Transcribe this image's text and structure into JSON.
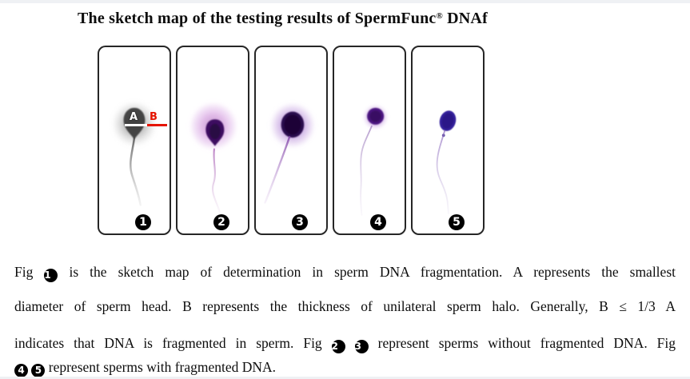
{
  "title": {
    "text": "The sketch map of the testing results of SpermFunc",
    "registered_mark": "®",
    "suffix": " DNAf"
  },
  "figure": {
    "name": "sperm-dna-fragmentation-sketch-panels",
    "panels": [
      {
        "number": "1",
        "illustration": "gray-sperm-with-halo-and-measurement-lines",
        "annotations": {
          "a_label": "A",
          "b_label": "B"
        },
        "colors": {
          "halo": "#878787",
          "head": "#3d3d3d",
          "tail": "#5a5a5a"
        }
      },
      {
        "number": "2",
        "illustration": "sperm-large-pink-purple-halo",
        "colors": {
          "halo": "#c77fd4",
          "head": "#3c0f60",
          "tail": "#a85fb5"
        }
      },
      {
        "number": "3",
        "illustration": "sperm-large-dark-head-purple-halo",
        "colors": {
          "halo": "#9257c5",
          "head": "#2b0b4d",
          "tail": "#7e3fa5"
        }
      },
      {
        "number": "4",
        "illustration": "sperm-small-head-thin-halo",
        "colors": {
          "halo": "#b37ad6",
          "head": "#4c1280",
          "tail": "#9a78bb"
        }
      },
      {
        "number": "5",
        "illustration": "sperm-no-halo-blue-violet-head",
        "colors": {
          "halo": "none",
          "head": "#36219c",
          "tail": "#8a68bd"
        }
      }
    ]
  },
  "caption": {
    "lines": [
      {
        "justify": true,
        "segments": [
          {
            "text": "Fig "
          },
          {
            "badge": "1"
          },
          {
            "text": " is the sketch map of determination in sperm DNA fragmentation. A represents the smallest"
          }
        ]
      },
      {
        "justify": true,
        "segments": [
          {
            "text": "diameter of sperm head. B represents the thickness of unilateral sperm halo. Generally, B ≤ 1/3 A"
          }
        ]
      },
      {
        "justify": true,
        "segments": [
          {
            "text": "indicates that DNA is fragmented in sperm. Fig "
          },
          {
            "badge": "2"
          },
          {
            "text": " "
          },
          {
            "badge": "3"
          },
          {
            "text": " represent sperms without fragmented DNA. Fig"
          }
        ]
      },
      {
        "justify": false,
        "segments": [
          {
            "badge": "4"
          },
          {
            "text": " "
          },
          {
            "badge": "5"
          },
          {
            "text": " represent sperms with fragmented DNA."
          }
        ]
      }
    ]
  },
  "colors": {
    "badge_bg": "#000000",
    "badge_fg": "#ffffff",
    "annotation_a": "#ffffff",
    "annotation_b": "#e51400",
    "panel_border": "#262626",
    "edge_strip": "#eff1f4",
    "text": "#0d0d0d"
  }
}
